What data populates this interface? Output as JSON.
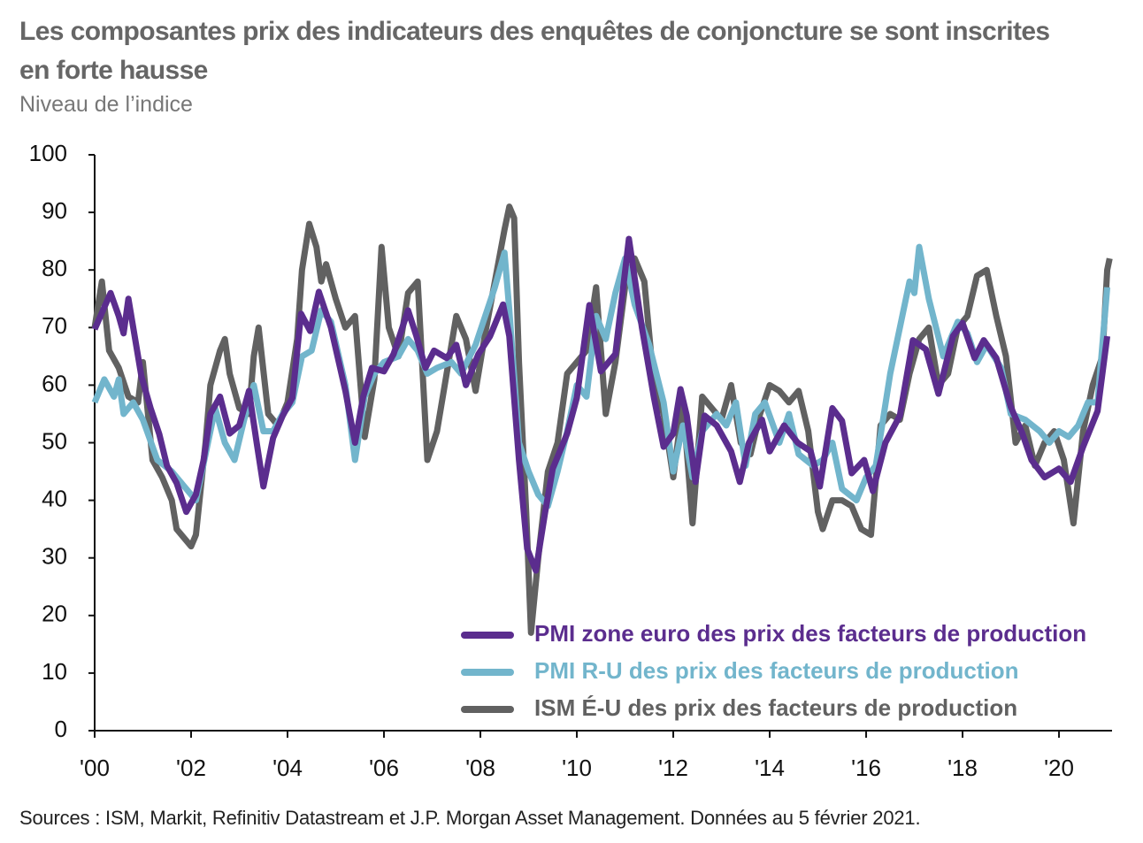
{
  "chart_data": {
    "type": "line",
    "title": "Les composantes prix des indicateurs des enquêtes de conjoncture se sont inscrites en forte hausse",
    "subtitle": "Niveau de l’indice",
    "source": "Sources : ISM, Markit, Refinitiv Datastream et J.P. Morgan Asset Management. Données au 5 février 2021.",
    "xlim": [
      2000,
      2021.1
    ],
    "xticks": [
      {
        "value": 2000,
        "label": "'00"
      },
      {
        "value": 2002,
        "label": "'02"
      },
      {
        "value": 2004,
        "label": "'04"
      },
      {
        "value": 2006,
        "label": "'06"
      },
      {
        "value": 2008,
        "label": "'08"
      },
      {
        "value": 2010,
        "label": "'10"
      },
      {
        "value": 2012,
        "label": "'12"
      },
      {
        "value": 2014,
        "label": "'14"
      },
      {
        "value": 2016,
        "label": "'16"
      },
      {
        "value": 2018,
        "label": "'18"
      },
      {
        "value": 2020,
        "label": "'20"
      }
    ],
    "ylim": [
      0,
      100
    ],
    "yticks": [
      0,
      10,
      20,
      30,
      40,
      50,
      60,
      70,
      80,
      90,
      100
    ],
    "legend": "lower right",
    "series": [
      {
        "name": "ISM É-U des prix des facteurs de production",
        "color": "#616161",
        "x": [
          2000.0,
          2000.15,
          2000.3,
          2000.5,
          2000.7,
          2000.9,
          2001.0,
          2001.2,
          2001.4,
          2001.6,
          2001.7,
          2001.9,
          2002.0,
          2002.1,
          2002.3,
          2002.4,
          2002.6,
          2002.7,
          2002.8,
          2003.0,
          2003.2,
          2003.3,
          2003.4,
          2003.6,
          2003.8,
          2004.0,
          2004.2,
          2004.3,
          2004.45,
          2004.6,
          2004.7,
          2004.8,
          2005.0,
          2005.2,
          2005.4,
          2005.6,
          2005.8,
          2005.95,
          2006.1,
          2006.3,
          2006.5,
          2006.7,
          2006.9,
          2007.1,
          2007.3,
          2007.5,
          2007.7,
          2007.9,
          2008.1,
          2008.3,
          2008.5,
          2008.6,
          2008.7,
          2008.8,
          2008.95,
          2009.05,
          2009.2,
          2009.4,
          2009.6,
          2009.8,
          2010.0,
          2010.2,
          2010.4,
          2010.6,
          2010.8,
          2011.0,
          2011.2,
          2011.4,
          2011.6,
          2011.8,
          2012.0,
          2012.2,
          2012.4,
          2012.6,
          2012.8,
          2013.0,
          2013.2,
          2013.4,
          2013.6,
          2013.8,
          2014.0,
          2014.2,
          2014.4,
          2014.6,
          2014.8,
          2015.0,
          2015.1,
          2015.3,
          2015.5,
          2015.7,
          2015.9,
          2016.1,
          2016.3,
          2016.5,
          2016.7,
          2016.9,
          2017.1,
          2017.3,
          2017.5,
          2017.7,
          2017.9,
          2018.1,
          2018.3,
          2018.5,
          2018.7,
          2018.9,
          2019.1,
          2019.3,
          2019.5,
          2019.7,
          2019.9,
          2020.1,
          2020.3,
          2020.5,
          2020.7,
          2020.9,
          2021.0,
          2021.05
        ],
        "values": [
          70,
          78,
          66,
          63,
          58,
          57,
          64,
          47,
          44,
          40,
          35,
          33,
          32,
          34,
          50,
          60,
          66,
          68,
          62,
          56,
          55,
          65,
          70,
          55,
          53,
          57,
          68,
          80,
          88,
          84,
          78,
          81,
          75,
          70,
          72,
          51,
          61,
          84,
          70,
          65,
          76,
          78,
          47,
          52,
          62,
          72,
          68,
          59,
          69,
          78,
          87,
          91,
          89,
          64,
          38,
          17,
          30,
          45,
          50,
          62,
          64,
          66,
          77,
          55,
          64,
          77,
          82,
          78,
          60,
          55,
          44,
          57,
          36,
          58,
          56,
          54,
          60,
          50,
          48,
          55,
          60,
          59,
          57,
          59,
          52,
          38,
          35,
          40,
          40,
          39,
          35,
          34,
          53,
          55,
          54,
          62,
          68,
          70,
          60,
          62,
          70,
          72,
          79,
          80,
          72,
          65,
          50,
          53,
          46,
          50,
          52,
          47,
          36,
          52,
          60,
          65,
          80,
          82
        ]
      },
      {
        "name": "PMI R-U des prix des facteurs de production",
        "color": "#72b5cc",
        "x": [
          2000.0,
          2000.2,
          2000.4,
          2000.5,
          2000.6,
          2000.8,
          2001.0,
          2001.3,
          2001.6,
          2001.9,
          2002.1,
          2002.3,
          2002.5,
          2002.7,
          2002.9,
          2003.1,
          2003.3,
          2003.5,
          2003.7,
          2003.9,
          2004.1,
          2004.3,
          2004.5,
          2004.7,
          2004.9,
          2005.2,
          2005.4,
          2005.6,
          2005.8,
          2006.0,
          2006.3,
          2006.5,
          2006.7,
          2006.9,
          2007.1,
          2007.4,
          2007.6,
          2007.9,
          2008.1,
          2008.3,
          2008.5,
          2008.6,
          2008.8,
          2009.0,
          2009.2,
          2009.4,
          2009.6,
          2009.8,
          2010.0,
          2010.2,
          2010.4,
          2010.6,
          2010.8,
          2011.0,
          2011.2,
          2011.5,
          2011.8,
          2012.0,
          2012.2,
          2012.4,
          2012.6,
          2012.9,
          2013.1,
          2013.3,
          2013.5,
          2013.7,
          2013.9,
          2014.2,
          2014.4,
          2014.6,
          2014.9,
          2015.1,
          2015.3,
          2015.5,
          2015.8,
          2016.0,
          2016.2,
          2016.5,
          2016.7,
          2016.9,
          2017.0,
          2017.1,
          2017.3,
          2017.6,
          2017.9,
          2018.1,
          2018.3,
          2018.5,
          2018.8,
          2019.0,
          2019.3,
          2019.6,
          2019.8,
          2020.0,
          2020.2,
          2020.4,
          2020.6,
          2020.8,
          2021.0
        ],
        "values": [
          57,
          61,
          58,
          61,
          55,
          57,
          54,
          47,
          45,
          42,
          40,
          48,
          56,
          50,
          47,
          54,
          60,
          52,
          52,
          55,
          57,
          65,
          66,
          73,
          71,
          60,
          47,
          58,
          62,
          64,
          65,
          68,
          66,
          62,
          63,
          64,
          62,
          67,
          72,
          77,
          83,
          73,
          50,
          45,
          41,
          39,
          45,
          52,
          60,
          58,
          72,
          68,
          76,
          82,
          74,
          67,
          57,
          45,
          53,
          44,
          52,
          55,
          53,
          57,
          46,
          55,
          57,
          50,
          55,
          48,
          46,
          47,
          50,
          42,
          40,
          44,
          46,
          62,
          70,
          78,
          76,
          84,
          75,
          65,
          71,
          69,
          64,
          67,
          63,
          55,
          54,
          52,
          50,
          52,
          51,
          53,
          57,
          57,
          77
        ]
      },
      {
        "name": "PMI zone euro des prix des facteurs de production",
        "color": "#5b2d8e",
        "x": [
          2000.0,
          2000.33,
          2000.5,
          2000.6,
          2000.7,
          2000.97,
          2001.16,
          2001.34,
          2001.5,
          2001.7,
          2001.9,
          2002.1,
          2002.26,
          2002.4,
          2002.6,
          2002.8,
          2003.0,
          2003.2,
          2003.36,
          2003.5,
          2003.7,
          2003.9,
          2004.1,
          2004.28,
          2004.47,
          2004.65,
          2004.9,
          2005.2,
          2005.4,
          2005.57,
          2005.75,
          2006.0,
          2006.2,
          2006.5,
          2006.67,
          2006.86,
          2007.04,
          2007.3,
          2007.5,
          2007.7,
          2007.96,
          2008.2,
          2008.47,
          2008.6,
          2008.8,
          2008.97,
          2009.15,
          2009.34,
          2009.5,
          2009.8,
          2010.0,
          2010.26,
          2010.5,
          2010.8,
          2011.08,
          2011.35,
          2011.6,
          2011.8,
          2012.0,
          2012.15,
          2012.28,
          2012.46,
          2012.65,
          2012.9,
          2013.2,
          2013.38,
          2013.57,
          2013.84,
          2014.0,
          2014.3,
          2014.58,
          2014.85,
          2015.04,
          2015.3,
          2015.5,
          2015.7,
          2015.96,
          2016.14,
          2016.4,
          2016.7,
          2016.97,
          2017.24,
          2017.5,
          2017.8,
          2018.0,
          2018.25,
          2018.44,
          2018.7,
          2019.0,
          2019.24,
          2019.43,
          2019.7,
          2020.0,
          2020.24,
          2020.5,
          2020.8,
          2021.0
        ],
        "values": [
          69.7,
          76,
          72,
          69,
          75,
          61.5,
          56,
          51.5,
          46,
          43,
          38,
          41,
          47,
          55,
          58,
          51.6,
          53,
          59,
          50,
          42.4,
          50.8,
          54.7,
          57.8,
          72.4,
          69.4,
          76.2,
          70,
          59,
          50,
          58,
          63,
          62.4,
          65.4,
          73,
          68.6,
          63,
          66,
          64.7,
          67,
          60,
          65.4,
          68.5,
          74,
          68.5,
          47,
          31.6,
          27.8,
          37.8,
          45.5,
          51.6,
          57.8,
          73.9,
          62.4,
          65.4,
          85.4,
          70,
          57.8,
          49.3,
          51.6,
          59.3,
          54.7,
          43.2,
          54.7,
          53,
          48.5,
          43.2,
          50,
          54,
          48.5,
          53,
          50,
          48.5,
          42.4,
          56,
          53.8,
          44.7,
          47,
          41.6,
          50,
          54.7,
          67.8,
          66.2,
          58.5,
          68.5,
          70.8,
          64.7,
          67.8,
          64.7,
          56.2,
          51.6,
          47,
          44,
          45.5,
          43.2,
          49.3,
          55.5,
          68.5
        ]
      }
    ]
  }
}
